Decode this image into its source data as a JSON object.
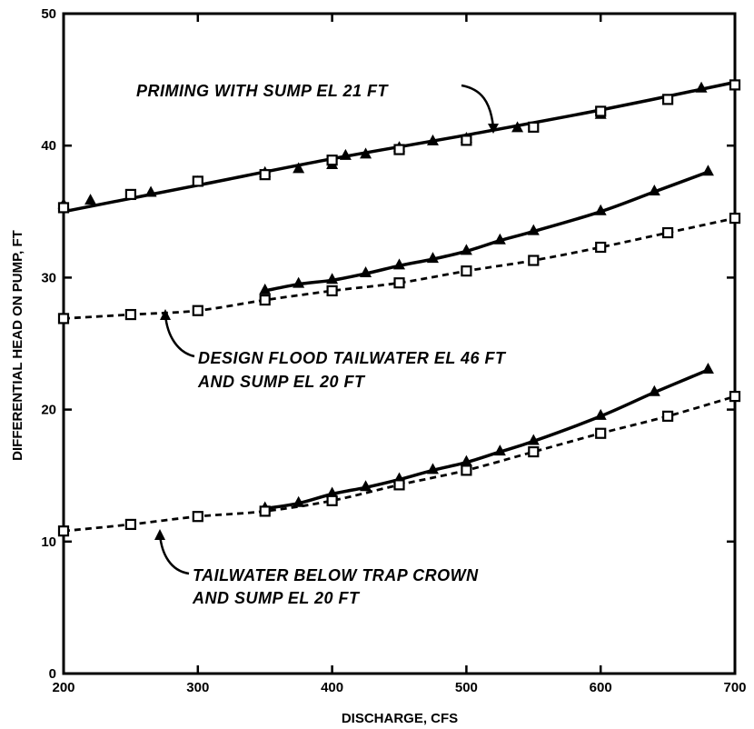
{
  "chart_data": {
    "type": "line",
    "xlabel": "DISCHARGE, CFS",
    "ylabel": "DIFFERENTIAL HEAD ON PUMP, FT",
    "xlim": [
      200,
      700
    ],
    "ylim": [
      0,
      50
    ],
    "xticks": [
      200,
      300,
      400,
      500,
      600,
      700
    ],
    "yticks": [
      0,
      10,
      20,
      30,
      40,
      50
    ],
    "grid": false,
    "annotations": [
      {
        "lines": [
          "PRIMING WITH SUMP EL 21 FT"
        ]
      },
      {
        "lines": [
          "DESIGN FLOOD TAILWATER EL 46 FT",
          "AND SUMP EL 20 FT"
        ]
      },
      {
        "lines": [
          "TAILWATER BELOW TRAP CROWN",
          "AND SUMP EL 20 FT"
        ]
      }
    ],
    "series": [
      {
        "style": "solid",
        "marker": "triangle",
        "role": "points",
        "x": [
          200,
          220,
          265,
          300,
          350,
          375,
          400,
          410,
          425,
          450,
          475,
          500,
          538,
          600,
          675
        ],
        "y": [
          35.5,
          35.8,
          36.4,
          37.2,
          37.9,
          38.2,
          38.5,
          39.2,
          39.3,
          39.8,
          40.3,
          40.5,
          41.3,
          42.3,
          44.3
        ]
      },
      {
        "style": "solid",
        "marker": "square",
        "role": "points",
        "x": [
          200,
          250,
          300,
          350,
          400,
          450,
          500,
          550,
          600,
          650,
          700
        ],
        "y": [
          35.3,
          36.3,
          37.3,
          37.8,
          38.9,
          39.7,
          40.4,
          41.4,
          42.6,
          43.5,
          44.6
        ]
      },
      {
        "style": "solid",
        "marker": "none",
        "role": "curve",
        "x": [
          200,
          300,
          400,
          500,
          600,
          700
        ],
        "y": [
          35.0,
          37.0,
          39.0,
          40.8,
          42.7,
          44.8
        ]
      },
      {
        "style": "solid",
        "marker": "triangle",
        "x": [
          350,
          375,
          400,
          425,
          450,
          475,
          500,
          525,
          550,
          600,
          640,
          680
        ],
        "y": [
          29.0,
          29.5,
          29.8,
          30.3,
          30.9,
          31.4,
          32.0,
          32.8,
          33.5,
          35.0,
          36.5,
          38.0
        ]
      },
      {
        "style": "dashed",
        "marker": "square",
        "x": [
          200,
          250,
          300,
          350,
          400,
          450,
          500,
          550,
          600,
          650,
          700
        ],
        "y": [
          26.9,
          27.2,
          27.5,
          28.3,
          29.0,
          29.6,
          30.5,
          31.3,
          32.3,
          33.4,
          34.5
        ]
      },
      {
        "style": "solid",
        "marker": "triangle",
        "x": [
          350,
          375,
          400,
          425,
          450,
          475,
          500,
          525,
          550,
          600,
          640,
          680
        ],
        "y": [
          12.5,
          12.9,
          13.6,
          14.1,
          14.7,
          15.4,
          16.0,
          16.8,
          17.6,
          19.5,
          21.3,
          23.0
        ]
      },
      {
        "style": "dashed",
        "marker": "square",
        "x": [
          200,
          250,
          300,
          350,
          400,
          450,
          500,
          550,
          600,
          650,
          700
        ],
        "y": [
          10.8,
          11.3,
          11.9,
          12.3,
          13.1,
          14.3,
          15.4,
          16.8,
          18.2,
          19.5,
          21.0
        ]
      }
    ]
  }
}
